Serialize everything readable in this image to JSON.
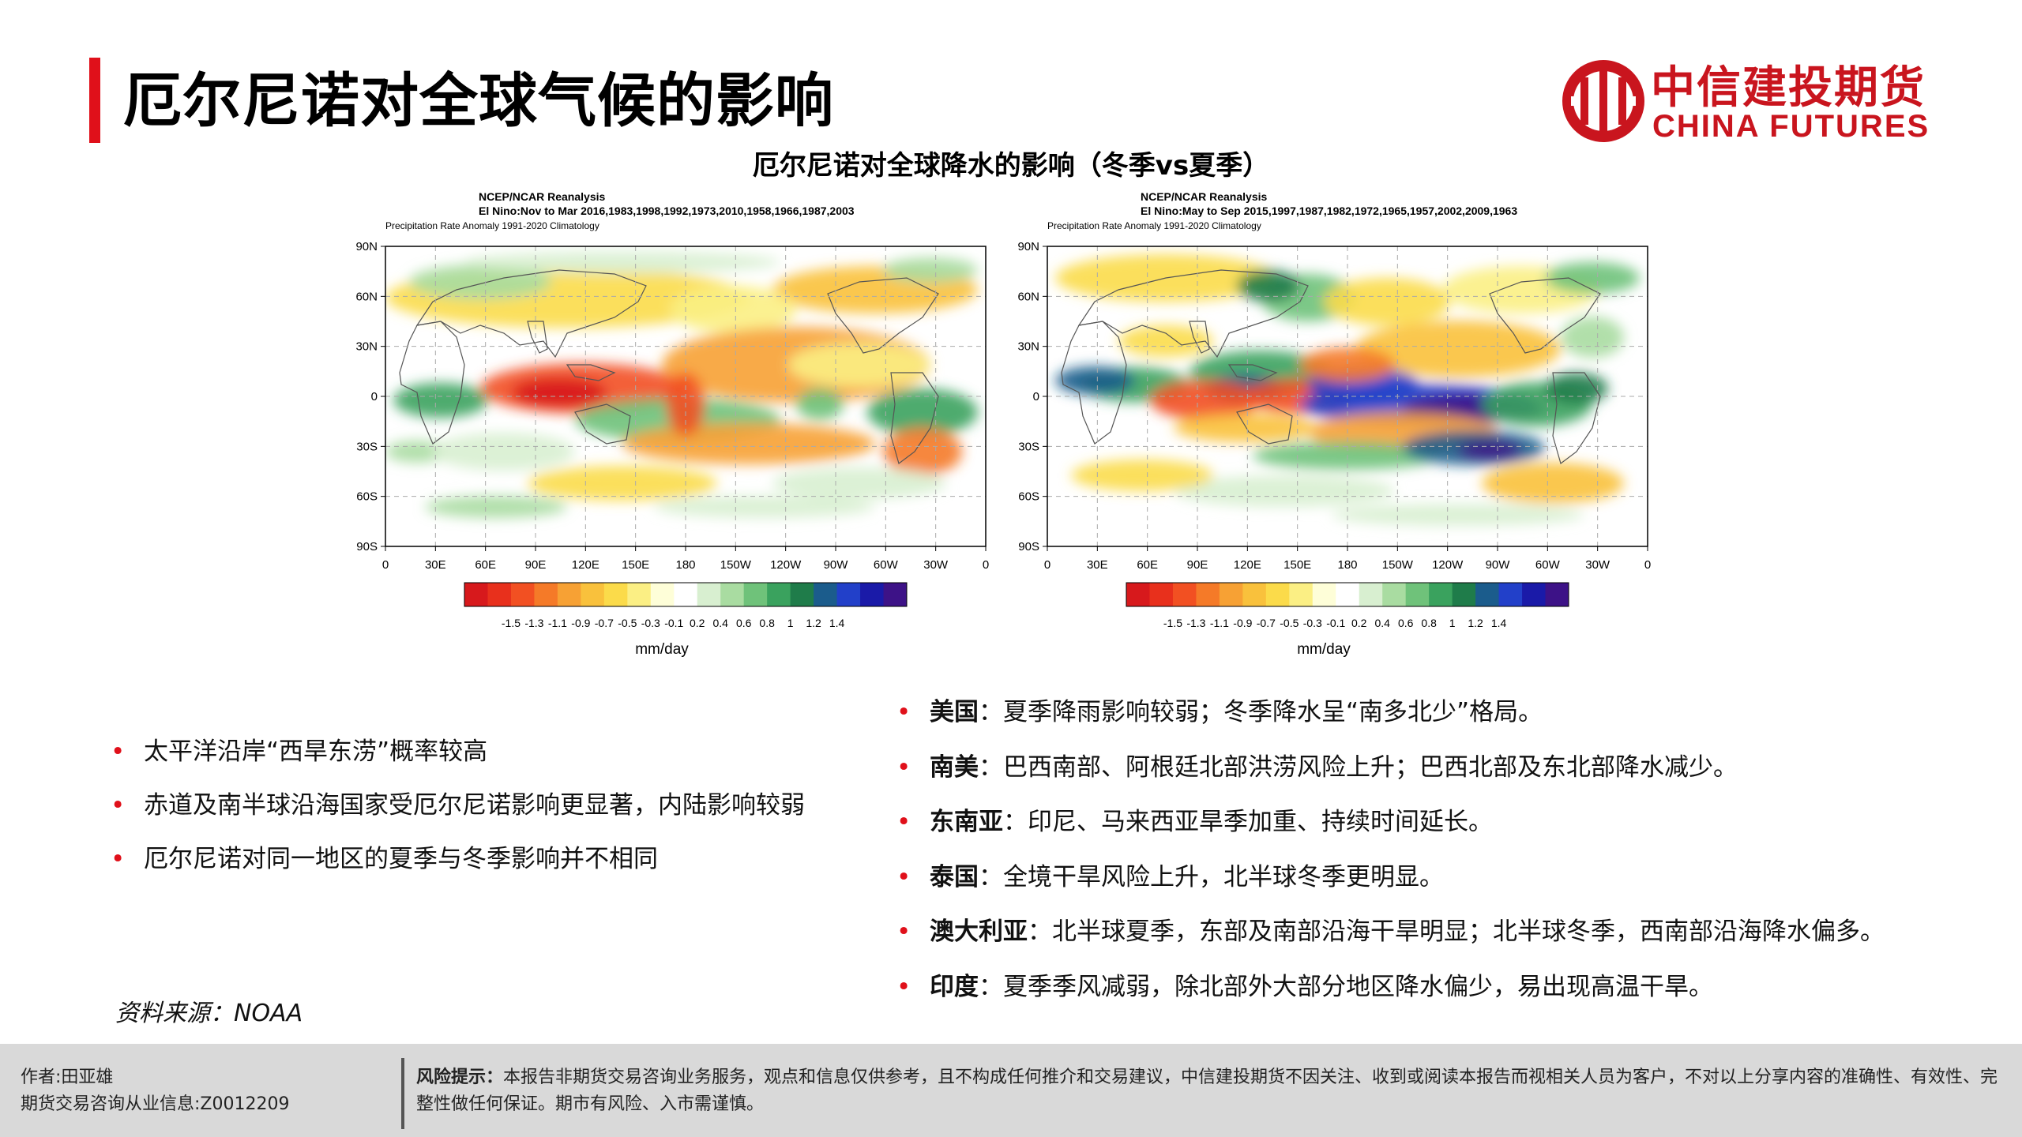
{
  "slide": {
    "title": "厄尔尼诺对全球气候的影响",
    "chart_heading": "厄尔尼诺对全球降水的影响（冬季vs夏季）",
    "source": "资料来源：NOAA"
  },
  "logo": {
    "cn": "中信建投期货",
    "en": "CHINA FUTURES",
    "color": "#c9151e"
  },
  "chart_data": [
    {
      "type": "heatmap",
      "title": "NCEP/NCAR Reanalysis",
      "subtitle": "El Nino:Nov to Mar 2016,1983,1998,1992,1973,2010,1958,1966,1987,2003",
      "caption": "Precipitation Rate Anomaly  1991-2020 Climatology",
      "x_ticks": [
        "0",
        "30E",
        "60E",
        "90E",
        "120E",
        "150E",
        "180",
        "150W",
        "120W",
        "90W",
        "60W",
        "30W",
        "0"
      ],
      "y_ticks": [
        "90N",
        "60N",
        "30N",
        "0",
        "30S",
        "60S",
        "90S"
      ],
      "colorbar_labels": [
        "-1.5",
        "-1.3",
        "-1.1",
        "-0.9",
        "-0.7",
        "-0.5",
        "-0.3",
        "-0.1",
        "0.2",
        "0.4",
        "0.6",
        "0.8",
        "1",
        "1.2",
        "1.4"
      ],
      "colorbar_unit": "mm/day"
    },
    {
      "type": "heatmap",
      "title": "NCEP/NCAR Reanalysis",
      "subtitle": "El Nino:May to Sep 2015,1997,1987,1982,1972,1965,1957,2002,2009,1963",
      "caption": "Precipitation Rate Anomaly  1991-2020 Climatology",
      "x_ticks": [
        "0",
        "30E",
        "60E",
        "90E",
        "120E",
        "150E",
        "180",
        "150W",
        "120W",
        "90W",
        "60W",
        "30W",
        "0"
      ],
      "y_ticks": [
        "90N",
        "60N",
        "30N",
        "0",
        "30S",
        "60S",
        "90S"
      ],
      "colorbar_labels": [
        "-1.5",
        "-1.3",
        "-1.1",
        "-0.9",
        "-0.7",
        "-0.5",
        "-0.3",
        "-0.1",
        "0.2",
        "0.4",
        "0.6",
        "0.8",
        "1",
        "1.2",
        "1.4"
      ],
      "colorbar_unit": "mm/day"
    }
  ],
  "colorbar_colors": [
    "#d7191c",
    "#e8301c",
    "#f25022",
    "#f57a28",
    "#f7a134",
    "#f9c13c",
    "#fbdb4a",
    "#fbef84",
    "#fefed8",
    "#ffffff",
    "#d8efd0",
    "#a9dca1",
    "#6fc27a",
    "#3aa25e",
    "#1f7c4a",
    "#1b5c8c",
    "#2240c9",
    "#1a1aa8",
    "#3d1287"
  ],
  "bullets_left": [
    "太平洋沿岸“西旱东涝”概率较高",
    "赤道及南半球沿海国家受厄尔尼诺影响更显著，内陆影响较弱",
    "厄尔尼诺对同一地区的夏季与冬季影响并不相同"
  ],
  "bullets_right": [
    {
      "key": "美国",
      "text": "：夏季降雨影响较弱；冬季降水呈“南多北少”格局。"
    },
    {
      "key": "南美",
      "text": "：巴西南部、阿根廷北部洪涝风险上升；巴西北部及东北部降水减少。"
    },
    {
      "key": "东南亚",
      "text": "：印尼、马来西亚旱季加重、持续时间延长。"
    },
    {
      "key": "泰国",
      "text": "：全境干旱风险上升，北半球冬季更明显。"
    },
    {
      "key": "澳大利亚",
      "text": "：北半球夏季，东部及南部沿海干旱明显；北半球冬季，西南部沿海降水偏多。"
    },
    {
      "key": "印度",
      "text": "：夏季季风减弱，除北部外大部分地区降水偏少，易出现高温干旱。"
    }
  ],
  "footer": {
    "author": "作者:田亚雄",
    "license": "期货交易咨询从业信息:Z0012209",
    "risk_label": "风险提示：",
    "risk_text": "本报告非期货交易咨询业务服务，观点和信息仅供参考，且不构成任何推介和交易建议，中信建投期货不因关注、收到或阅读本报告而视相关人员为客户，不对以上分享内容的准确性、有效性、完整性做任何保证。期市有风险、入市需谨慎。"
  }
}
